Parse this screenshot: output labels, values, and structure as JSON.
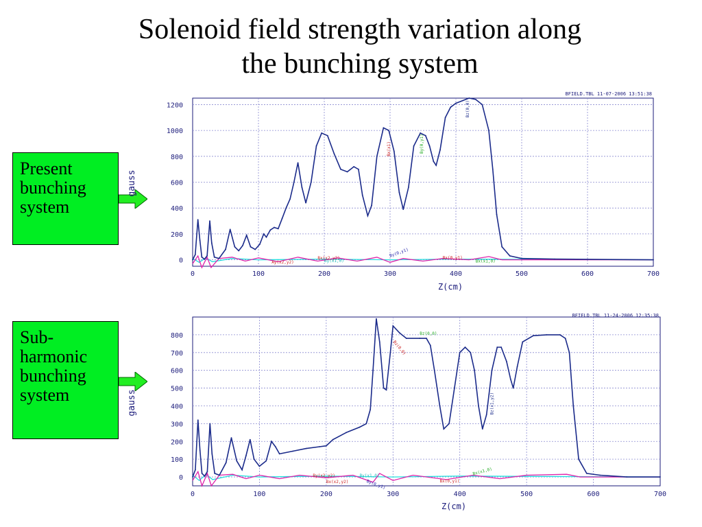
{
  "slide": {
    "title_line1": "Solenoid field strength variation along",
    "title_line2": "the bunching system",
    "labels": [
      {
        "text": "Present\nbunching\nsystem"
      },
      {
        "text": "Sub-\nharmonic\nbunching\nsystem"
      }
    ]
  },
  "colors": {
    "arrow": "#22ee22",
    "label_bg": "#00ee22",
    "bz": "#1a2a8a",
    "bx": "#dd22aa",
    "by": "#22dddd",
    "grid": "#8a8ad0",
    "axis_text": "#1a1a7a"
  },
  "chart_data": [
    {
      "type": "line",
      "header": "BFIELD.TBL    11-07-2006  13:51:38",
      "xlabel": "Z(cm)",
      "ylabel": "gauss",
      "xlim": [
        0,
        700
      ],
      "ylim": [
        -50,
        1250
      ],
      "xticks": [
        0,
        100,
        200,
        300,
        400,
        500,
        600,
        700
      ],
      "yticks": [
        0,
        200,
        400,
        600,
        800,
        1000,
        1200
      ],
      "grid": true,
      "series": [
        {
          "name": "Bz",
          "color": "#1a2a8a",
          "points": [
            [
              0,
              0
            ],
            [
              4,
              40
            ],
            [
              8,
              310
            ],
            [
              11,
              150
            ],
            [
              14,
              20
            ],
            [
              18,
              5
            ],
            [
              22,
              30
            ],
            [
              26,
              300
            ],
            [
              29,
              130
            ],
            [
              33,
              20
            ],
            [
              40,
              10
            ],
            [
              50,
              80
            ],
            [
              57,
              235
            ],
            [
              64,
              100
            ],
            [
              70,
              70
            ],
            [
              76,
              110
            ],
            [
              82,
              190
            ],
            [
              88,
              100
            ],
            [
              95,
              80
            ],
            [
              102,
              120
            ],
            [
              108,
              200
            ],
            [
              112,
              175
            ],
            [
              118,
              230
            ],
            [
              124,
              250
            ],
            [
              130,
              240
            ],
            [
              136,
              320
            ],
            [
              142,
              400
            ],
            [
              148,
              470
            ],
            [
              154,
              600
            ],
            [
              160,
              750
            ],
            [
              166,
              560
            ],
            [
              172,
              440
            ],
            [
              180,
              600
            ],
            [
              188,
              880
            ],
            [
              196,
              980
            ],
            [
              205,
              960
            ],
            [
              215,
              820
            ],
            [
              225,
              700
            ],
            [
              235,
              680
            ],
            [
              245,
              720
            ],
            [
              252,
              700
            ],
            [
              258,
              500
            ],
            [
              266,
              340
            ],
            [
              272,
              420
            ],
            [
              280,
              800
            ],
            [
              290,
              1020
            ],
            [
              298,
              1000
            ],
            [
              306,
              840
            ],
            [
              314,
              520
            ],
            [
              320,
              390
            ],
            [
              328,
              560
            ],
            [
              336,
              880
            ],
            [
              346,
              980
            ],
            [
              354,
              960
            ],
            [
              360,
              880
            ],
            [
              366,
              760
            ],
            [
              370,
              730
            ],
            [
              376,
              850
            ],
            [
              384,
              1100
            ],
            [
              392,
              1180
            ],
            [
              400,
              1210
            ],
            [
              410,
              1230
            ],
            [
              420,
              1250
            ],
            [
              430,
              1240
            ],
            [
              440,
              1200
            ],
            [
              450,
              1000
            ],
            [
              456,
              700
            ],
            [
              462,
              350
            ],
            [
              470,
              100
            ],
            [
              482,
              30
            ],
            [
              500,
              10
            ],
            [
              550,
              5
            ],
            [
              700,
              0
            ]
          ],
          "tag": "Bz(0,0)"
        },
        {
          "name": "Bx",
          "color": "#dd22aa",
          "points": [
            [
              0,
              -30
            ],
            [
              8,
              30
            ],
            [
              14,
              -60
            ],
            [
              22,
              20
            ],
            [
              28,
              -60
            ],
            [
              40,
              10
            ],
            [
              60,
              20
            ],
            [
              80,
              -10
            ],
            [
              100,
              15
            ],
            [
              130,
              -15
            ],
            [
              160,
              20
            ],
            [
              190,
              -10
            ],
            [
              220,
              15
            ],
            [
              250,
              -10
            ],
            [
              280,
              20
            ],
            [
              300,
              -20
            ],
            [
              320,
              10
            ],
            [
              350,
              -10
            ],
            [
              380,
              10
            ],
            [
              420,
              0
            ],
            [
              450,
              25
            ],
            [
              470,
              0
            ],
            [
              700,
              0
            ]
          ],
          "tag": "Bx(x2,y2)"
        },
        {
          "name": "By",
          "color": "#22dddd",
          "points": [
            [
              0,
              10
            ],
            [
              10,
              -20
            ],
            [
              20,
              15
            ],
            [
              30,
              -15
            ],
            [
              60,
              10
            ],
            [
              100,
              0
            ],
            [
              200,
              5
            ],
            [
              300,
              0
            ],
            [
              400,
              5
            ],
            [
              700,
              0
            ]
          ],
          "tag": "By(x1,0)"
        }
      ],
      "annotations": [
        "Bx(x2,y2)",
        "By(x1,0)",
        "By(0,y1)",
        "Bx(0,y1)",
        "Bx(x1,0)",
        "Ay(x2,y2)",
        "Bz(0,0)",
        "Bx(x1)",
        "By(0,y1)",
        "Bz(x1,y2)"
      ]
    },
    {
      "type": "line",
      "header": "BFIELD.TBL    11-24-2006  12:35:38",
      "xlabel": "Z(cm)",
      "ylabel": "gauss",
      "xlim": [
        0,
        700
      ],
      "ylim": [
        -50,
        900
      ],
      "xticks": [
        0,
        100,
        200,
        300,
        400,
        500,
        600,
        700
      ],
      "yticks": [
        0,
        100,
        200,
        300,
        400,
        500,
        600,
        700,
        800
      ],
      "grid": true,
      "series": [
        {
          "name": "Bz",
          "color": "#1a2a8a",
          "points": [
            [
              0,
              0
            ],
            [
              4,
              40
            ],
            [
              8,
              320
            ],
            [
              11,
              150
            ],
            [
              14,
              20
            ],
            [
              18,
              5
            ],
            [
              22,
              30
            ],
            [
              26,
              300
            ],
            [
              29,
              130
            ],
            [
              33,
              20
            ],
            [
              40,
              10
            ],
            [
              50,
              80
            ],
            [
              58,
              220
            ],
            [
              66,
              90
            ],
            [
              74,
              40
            ],
            [
              80,
              120
            ],
            [
              86,
              210
            ],
            [
              92,
              100
            ],
            [
              100,
              60
            ],
            [
              110,
              90
            ],
            [
              118,
              200
            ],
            [
              124,
              170
            ],
            [
              130,
              130
            ],
            [
              150,
              145
            ],
            [
              170,
              160
            ],
            [
              190,
              170
            ],
            [
              200,
              175
            ],
            [
              210,
              210
            ],
            [
              230,
              250
            ],
            [
              250,
              280
            ],
            [
              260,
              300
            ],
            [
              266,
              380
            ],
            [
              270,
              600
            ],
            [
              275,
              890
            ],
            [
              280,
              760
            ],
            [
              286,
              500
            ],
            [
              290,
              490
            ],
            [
              296,
              700
            ],
            [
              300,
              850
            ],
            [
              310,
              810
            ],
            [
              320,
              780
            ],
            [
              340,
              780
            ],
            [
              350,
              780
            ],
            [
              356,
              740
            ],
            [
              362,
              600
            ],
            [
              370,
              400
            ],
            [
              376,
              270
            ],
            [
              384,
              300
            ],
            [
              392,
              500
            ],
            [
              400,
              700
            ],
            [
              408,
              730
            ],
            [
              416,
              700
            ],
            [
              422,
              600
            ],
            [
              428,
              400
            ],
            [
              434,
              270
            ],
            [
              440,
              350
            ],
            [
              448,
              600
            ],
            [
              456,
              730
            ],
            [
              462,
              730
            ],
            [
              470,
              650
            ],
            [
              476,
              550
            ],
            [
              480,
              500
            ],
            [
              486,
              620
            ],
            [
              494,
              760
            ],
            [
              510,
              795
            ],
            [
              530,
              800
            ],
            [
              550,
              800
            ],
            [
              558,
              780
            ],
            [
              564,
              700
            ],
            [
              570,
              400
            ],
            [
              578,
              100
            ],
            [
              590,
              20
            ],
            [
              610,
              10
            ],
            [
              650,
              0
            ],
            [
              700,
              0
            ]
          ],
          "tag": "Bz(0,0)"
        },
        {
          "name": "Bx",
          "color": "#dd22aa",
          "points": [
            [
              0,
              -20
            ],
            [
              8,
              30
            ],
            [
              14,
              -50
            ],
            [
              22,
              20
            ],
            [
              28,
              -50
            ],
            [
              40,
              10
            ],
            [
              60,
              15
            ],
            [
              80,
              -10
            ],
            [
              100,
              10
            ],
            [
              130,
              -10
            ],
            [
              160,
              10
            ],
            [
              200,
              -5
            ],
            [
              240,
              10
            ],
            [
              270,
              -30
            ],
            [
              280,
              20
            ],
            [
              300,
              -20
            ],
            [
              330,
              10
            ],
            [
              380,
              -15
            ],
            [
              420,
              10
            ],
            [
              460,
              -10
            ],
            [
              500,
              10
            ],
            [
              560,
              15
            ],
            [
              580,
              0
            ],
            [
              700,
              0
            ]
          ],
          "tag": "Bx(x2,y2)"
        },
        {
          "name": "By",
          "color": "#22dddd",
          "points": [
            [
              0,
              10
            ],
            [
              10,
              -20
            ],
            [
              20,
              15
            ],
            [
              30,
              -15
            ],
            [
              60,
              10
            ],
            [
              100,
              0
            ],
            [
              200,
              5
            ],
            [
              300,
              0
            ],
            [
              400,
              5
            ],
            [
              700,
              0
            ]
          ],
          "tag": "By(x1,0)"
        }
      ],
      "annotations": [
        "By(x2,y2)",
        "By(x1,0)",
        "Bx(x2,y2)",
        "By(0,y1)",
        "Bx(0,y1)",
        "Bx(x1,0)",
        "Bz(0,0)",
        "Bz(0,0)",
        "Bz(x1,y2)"
      ]
    }
  ]
}
